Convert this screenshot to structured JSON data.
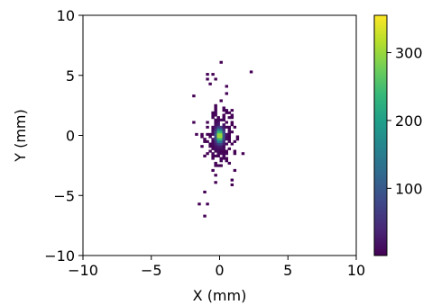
{
  "chart_data": {
    "type": "heatmap",
    "title": "",
    "xlabel": "X (mm)",
    "ylabel": "Y (mm)",
    "xlim": [
      -10,
      10
    ],
    "ylim": [
      -10,
      10
    ],
    "xticks": [
      {
        "v": -10,
        "label": "−10"
      },
      {
        "v": -5,
        "label": "−5"
      },
      {
        "v": 0,
        "label": "0"
      },
      {
        "v": 5,
        "label": "5"
      },
      {
        "v": 10,
        "label": "10"
      }
    ],
    "yticks": [
      {
        "v": -10,
        "label": "−10"
      },
      {
        "v": -5,
        "label": "−5"
      },
      {
        "v": 0,
        "label": "0"
      },
      {
        "v": 5,
        "label": "5"
      },
      {
        "v": 10,
        "label": "10"
      }
    ],
    "grid": false,
    "bin_size_mm": 0.2,
    "distribution": {
      "center": [
        0.0,
        0.0
      ],
      "sigma_x_mm": 0.55,
      "sigma_y_mm": 1.6,
      "peak_count": 350,
      "extent_x_mm": [
        -2.0,
        2.5
      ],
      "extent_y_mm": [
        -7.0,
        6.5
      ]
    },
    "colorbar": {
      "colormap": "viridis",
      "min": 1,
      "max": 355,
      "ticks": [
        {
          "v": 100,
          "label": "100"
        },
        {
          "v": 200,
          "label": "200"
        },
        {
          "v": 300,
          "label": "300"
        }
      ]
    },
    "colors": {
      "viridis": [
        "#440154",
        "#482878",
        "#3e4989",
        "#31688e",
        "#26828e",
        "#1f9e89",
        "#35b779",
        "#6ece58",
        "#b5de2b",
        "#fde725"
      ]
    }
  }
}
